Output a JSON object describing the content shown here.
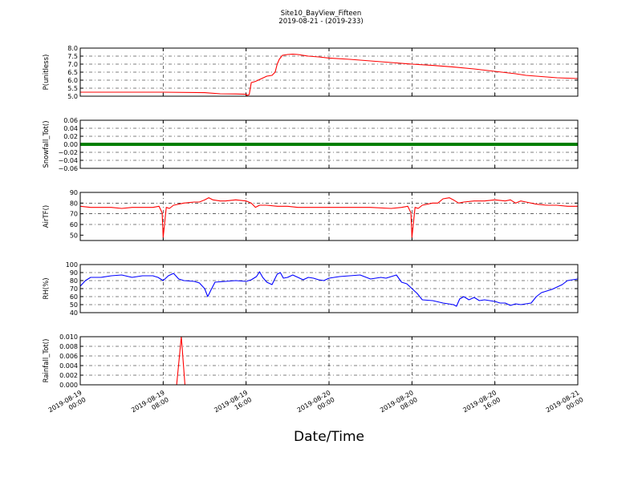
{
  "figure": {
    "title_line1": "Site10_BayView_Fifteen",
    "title_line2": "2019-08-21 - (2019-233)",
    "xlabel": "Date/Time"
  },
  "chart_data": {
    "type": "line",
    "x_axis": {
      "range": [
        "2019-08-19 00:00",
        "2019-08-21 00:00"
      ],
      "ticks": [
        {
          "value": 0,
          "line1": "2019-08-19",
          "line2": "00:00"
        },
        {
          "value": 8,
          "line1": "2019-08-19",
          "line2": "08:00"
        },
        {
          "value": 16,
          "line1": "2019-08-19",
          "line2": "16:00"
        },
        {
          "value": 24,
          "line1": "2019-08-20",
          "line2": "00:00"
        },
        {
          "value": 32,
          "line1": "2019-08-20",
          "line2": "08:00"
        },
        {
          "value": 40,
          "line1": "2019-08-20",
          "line2": "16:00"
        },
        {
          "value": 48,
          "line1": "2019-08-21",
          "line2": "00:00"
        }
      ]
    },
    "panels": [
      {
        "id": "p",
        "ylabel": "P(unitless)",
        "ylim": [
          5.0,
          8.0
        ],
        "yticks": [
          5.0,
          5.5,
          6.0,
          6.5,
          7.0,
          7.5,
          8.0
        ],
        "ytick_labels": [
          "5.0",
          "5.5",
          "6.0",
          "6.5",
          "7.0",
          "7.5",
          "8.0"
        ],
        "color": "#ff0000",
        "series": [
          [
            0,
            5.25
          ],
          [
            8,
            5.25
          ],
          [
            12,
            5.22
          ],
          [
            13.5,
            5.15
          ],
          [
            15,
            5.14
          ],
          [
            16,
            5.12
          ],
          [
            16.1,
            5.05
          ],
          [
            16.3,
            5.1
          ],
          [
            16.5,
            5.85
          ],
          [
            16.8,
            5.9
          ],
          [
            17,
            5.95
          ],
          [
            17.5,
            6.1
          ],
          [
            18,
            6.25
          ],
          [
            18.5,
            6.3
          ],
          [
            18.8,
            6.5
          ],
          [
            19,
            7.0
          ],
          [
            19.2,
            7.3
          ],
          [
            19.5,
            7.55
          ],
          [
            20,
            7.6
          ],
          [
            20.5,
            7.62
          ],
          [
            21,
            7.6
          ],
          [
            22,
            7.5
          ],
          [
            23,
            7.45
          ],
          [
            24,
            7.38
          ],
          [
            26,
            7.3
          ],
          [
            28,
            7.2
          ],
          [
            30,
            7.1
          ],
          [
            32,
            7.0
          ],
          [
            34,
            6.92
          ],
          [
            36,
            6.82
          ],
          [
            38,
            6.7
          ],
          [
            40,
            6.55
          ],
          [
            42,
            6.4
          ],
          [
            43,
            6.3
          ],
          [
            44,
            6.25
          ],
          [
            45,
            6.2
          ],
          [
            46,
            6.15
          ],
          [
            48,
            6.1
          ]
        ]
      },
      {
        "id": "snow",
        "ylabel": "Snowfall_Tot()",
        "ylim": [
          -0.06,
          0.06
        ],
        "yticks": [
          -0.06,
          -0.04,
          -0.02,
          0.0,
          0.02,
          0.04,
          0.06
        ],
        "ytick_labels": [
          "−0.06",
          "−0.04",
          "−0.02",
          "0.00",
          "0.02",
          "0.04",
          "0.06"
        ],
        "color": "#007f00",
        "marker_style": "dots",
        "series": [
          [
            0,
            0
          ],
          [
            48,
            0
          ]
        ]
      },
      {
        "id": "air",
        "ylabel": "AirTF()",
        "ylim": [
          45,
          90
        ],
        "yticks": [
          50,
          60,
          70,
          80,
          90
        ],
        "ytick_labels": [
          "50",
          "60",
          "70",
          "80",
          "90"
        ],
        "color": "#ff0000",
        "series": [
          [
            0,
            77
          ],
          [
            1,
            76
          ],
          [
            2,
            76
          ],
          [
            3,
            76
          ],
          [
            4,
            75
          ],
          [
            5,
            76
          ],
          [
            6,
            76
          ],
          [
            7,
            76
          ],
          [
            7.6,
            77
          ],
          [
            7.9,
            71
          ],
          [
            8,
            48
          ],
          [
            8.3,
            76
          ],
          [
            8.6,
            75
          ],
          [
            9,
            78
          ],
          [
            10,
            80
          ],
          [
            11,
            81
          ],
          [
            11.5,
            81
          ],
          [
            12,
            83
          ],
          [
            12.4,
            85
          ],
          [
            12.8,
            83
          ],
          [
            13.5,
            82
          ],
          [
            14,
            82
          ],
          [
            15,
            83
          ],
          [
            16,
            82
          ],
          [
            16.5,
            80
          ],
          [
            16.9,
            76
          ],
          [
            17.3,
            78
          ],
          [
            18,
            78
          ],
          [
            19,
            77
          ],
          [
            20,
            77
          ],
          [
            21,
            76
          ],
          [
            22,
            76
          ],
          [
            23,
            76
          ],
          [
            24,
            76
          ],
          [
            26,
            76
          ],
          [
            28,
            76
          ],
          [
            30,
            75
          ],
          [
            31,
            76
          ],
          [
            31.6,
            77
          ],
          [
            31.9,
            71
          ],
          [
            32,
            48
          ],
          [
            32.3,
            76
          ],
          [
            32.6,
            75
          ],
          [
            33,
            78
          ],
          [
            34,
            80
          ],
          [
            34.5,
            80
          ],
          [
            35,
            84
          ],
          [
            35.6,
            85
          ],
          [
            36,
            83
          ],
          [
            36.5,
            80
          ],
          [
            37,
            81
          ],
          [
            38,
            82
          ],
          [
            39,
            82
          ],
          [
            40,
            83
          ],
          [
            41,
            82
          ],
          [
            41.5,
            83
          ],
          [
            42,
            80
          ],
          [
            42.5,
            82
          ],
          [
            43,
            81
          ],
          [
            44,
            79
          ],
          [
            45,
            78
          ],
          [
            46,
            78
          ],
          [
            47,
            77
          ],
          [
            48,
            77
          ]
        ]
      },
      {
        "id": "rh",
        "ylabel": "RH(%)",
        "ylim": [
          40,
          100
        ],
        "yticks": [
          40,
          50,
          60,
          70,
          80,
          90,
          100
        ],
        "ytick_labels": [
          "40",
          "50",
          "60",
          "70",
          "80",
          "90",
          "100"
        ],
        "color": "#0000ff",
        "series": [
          [
            0,
            73
          ],
          [
            0.5,
            80
          ],
          [
            1,
            84
          ],
          [
            2,
            84
          ],
          [
            3,
            86
          ],
          [
            4,
            87
          ],
          [
            5,
            84
          ],
          [
            6,
            86
          ],
          [
            7,
            86
          ],
          [
            7.5,
            84
          ],
          [
            8,
            80
          ],
          [
            8.5,
            86
          ],
          [
            9,
            89
          ],
          [
            9.5,
            82
          ],
          [
            10,
            80
          ],
          [
            11,
            79
          ],
          [
            11.5,
            77
          ],
          [
            12,
            70
          ],
          [
            12.3,
            60
          ],
          [
            12.6,
            68
          ],
          [
            13,
            78
          ],
          [
            14,
            79
          ],
          [
            15,
            80
          ],
          [
            16,
            79
          ],
          [
            16.5,
            81
          ],
          [
            17,
            85
          ],
          [
            17.3,
            91
          ],
          [
            17.6,
            84
          ],
          [
            18,
            78
          ],
          [
            18.5,
            75
          ],
          [
            19,
            88
          ],
          [
            19.3,
            90
          ],
          [
            19.6,
            83
          ],
          [
            20,
            84
          ],
          [
            20.5,
            87
          ],
          [
            21,
            84
          ],
          [
            21.5,
            81
          ],
          [
            22,
            84
          ],
          [
            22.5,
            83
          ],
          [
            23,
            81
          ],
          [
            23.5,
            80
          ],
          [
            24,
            83
          ],
          [
            25,
            85
          ],
          [
            26,
            86
          ],
          [
            27,
            87
          ],
          [
            28,
            82
          ],
          [
            29,
            84
          ],
          [
            29.5,
            83
          ],
          [
            30,
            85
          ],
          [
            30.5,
            87
          ],
          [
            31,
            78
          ],
          [
            31.5,
            76
          ],
          [
            32,
            70
          ],
          [
            32.5,
            64
          ],
          [
            33,
            56
          ],
          [
            34,
            55
          ],
          [
            35,
            52
          ],
          [
            36,
            50
          ],
          [
            36.3,
            48
          ],
          [
            36.6,
            57
          ],
          [
            37,
            60
          ],
          [
            37.5,
            56
          ],
          [
            38,
            59
          ],
          [
            38.5,
            55
          ],
          [
            39,
            56
          ],
          [
            40,
            54
          ],
          [
            40.5,
            52
          ],
          [
            41,
            52
          ],
          [
            41.5,
            49
          ],
          [
            42,
            51
          ],
          [
            42.5,
            50
          ],
          [
            43,
            51
          ],
          [
            43.5,
            52
          ],
          [
            44,
            60
          ],
          [
            44.5,
            65
          ],
          [
            45,
            67
          ],
          [
            45.5,
            69
          ],
          [
            46,
            72
          ],
          [
            46.5,
            75
          ],
          [
            47,
            80
          ],
          [
            48,
            82
          ],
          [
            48,
            85
          ]
        ]
      },
      {
        "id": "rain",
        "ylabel": "Rainfall_Tot()",
        "ylim": [
          0.0,
          0.01
        ],
        "yticks": [
          0.0,
          0.002,
          0.004,
          0.006,
          0.008,
          0.01
        ],
        "ytick_labels": [
          "0.000",
          "0.002",
          "0.004",
          "0.006",
          "0.008",
          "0.010"
        ],
        "color": "#ff0000",
        "series": [
          [
            0,
            0
          ],
          [
            9.3,
            0
          ],
          [
            9.75,
            0.01
          ],
          [
            10.1,
            0
          ],
          [
            48,
            0
          ]
        ]
      }
    ]
  }
}
